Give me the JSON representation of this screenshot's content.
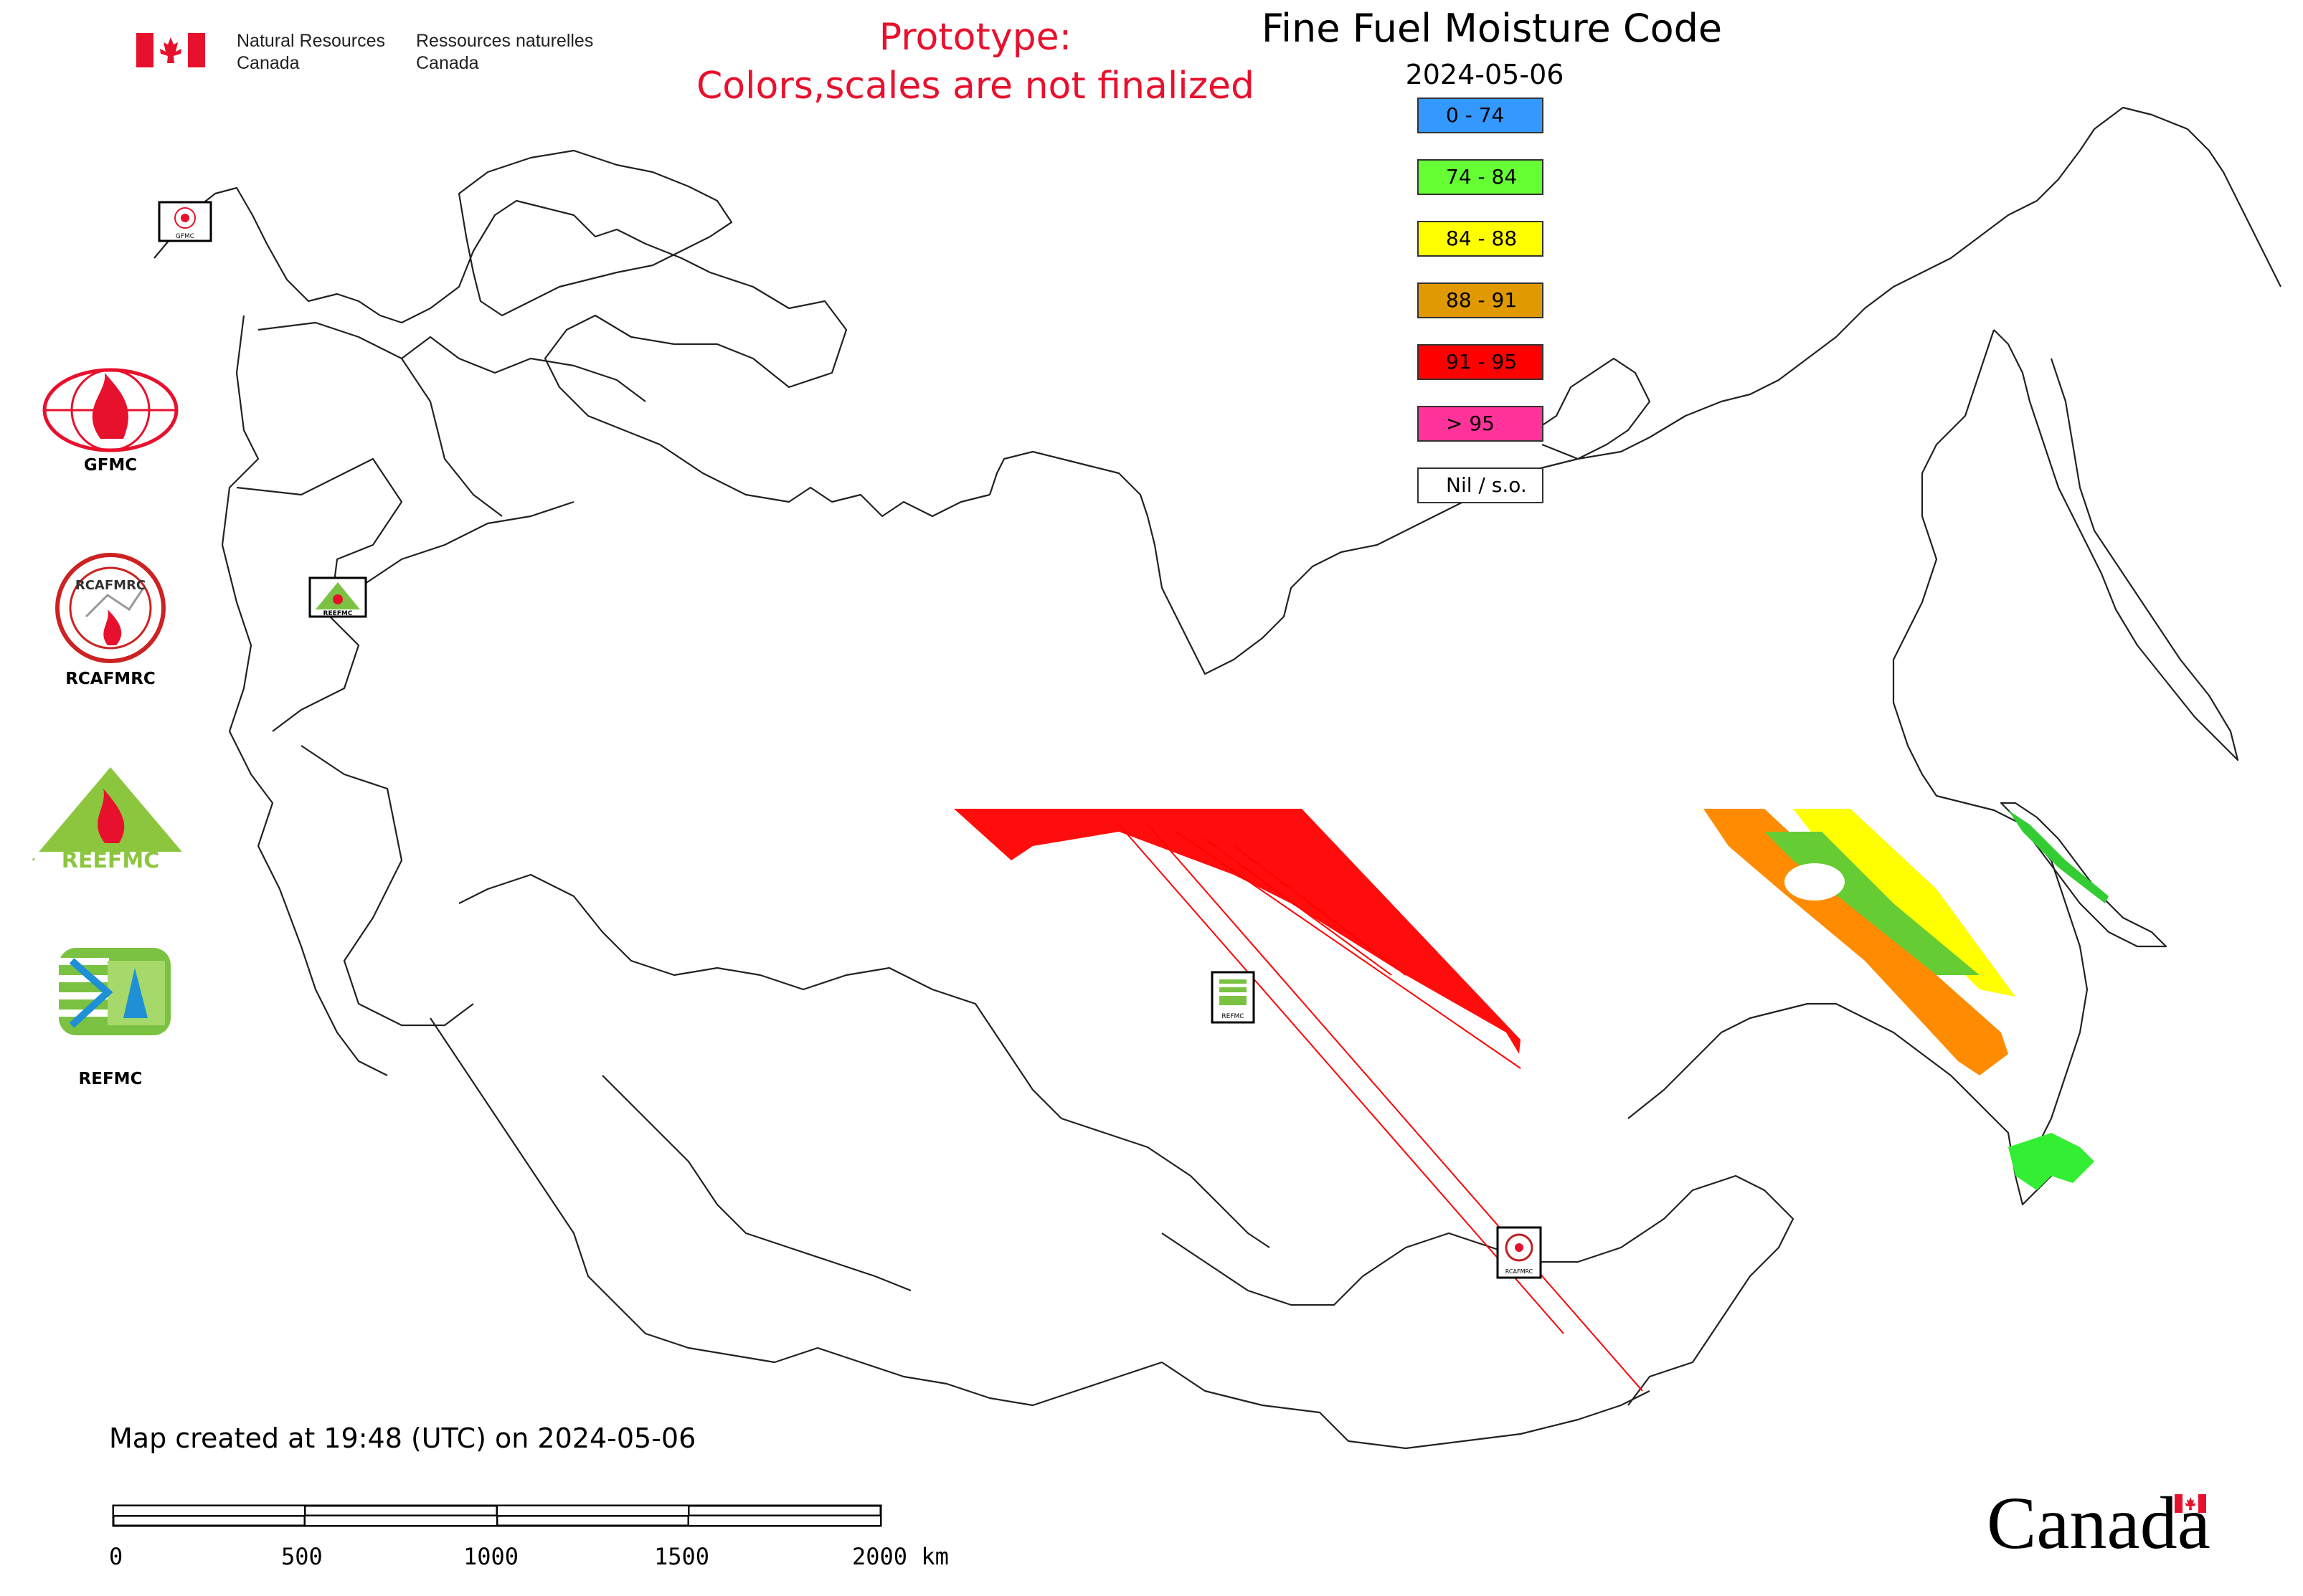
{
  "header": {
    "department_en_line1": "Natural Resources",
    "department_en_line2": "Canada",
    "department_fr_line1": "Ressources naturelles",
    "department_fr_line2": "Canada",
    "flag_icon": "canada-flag-icon",
    "flag_color": "#e8112d"
  },
  "notice": {
    "line1": "Prototype:",
    "line2": "Colors,scales are not finalized",
    "color": "#e8112d"
  },
  "map": {
    "title": "Fine Fuel Moisture Code",
    "date": "2024-05-06",
    "created_note": "Map created at 19:48 (UTC) on 2024-05-06"
  },
  "legend": {
    "items": [
      {
        "label": "0 - 74",
        "color": "#3399ff"
      },
      {
        "label": "74 - 84",
        "color": "#66ff33"
      },
      {
        "label": "84 - 88",
        "color": "#ffff00"
      },
      {
        "label": "88 - 91",
        "color": "#e09900"
      },
      {
        "label": "91 - 95",
        "color": "#ff0000"
      },
      {
        "label": "> 95",
        "color": "#ff3399"
      },
      {
        "label": "Nil / s.o.",
        "color": "#ffffff"
      }
    ]
  },
  "logos": [
    {
      "name": "GFMC",
      "caption": "GFMC",
      "icon": "gfmc-logo-icon"
    },
    {
      "name": "RCAFMRC",
      "caption": "RCAFMRC",
      "icon": "rcafmrc-logo-icon"
    },
    {
      "name": "REEFMC",
      "caption": "",
      "icon": "reefmc-logo-icon",
      "wordmark": "REEFMC"
    },
    {
      "name": "REFMC",
      "caption": "REFMC",
      "icon": "refmc-logo-icon"
    }
  ],
  "markers": [
    {
      "name": "gfmc-station-marker",
      "label": "GFMC"
    },
    {
      "name": "reefmc-station-marker",
      "label": "REEFMC"
    },
    {
      "name": "refmc-station-marker",
      "label": "REFMC"
    },
    {
      "name": "rcafmrc-station-marker",
      "label": "RCAFMRC"
    }
  ],
  "scale_bar": {
    "ticks": [
      "0",
      "500",
      "1000",
      "1500",
      "2000 km"
    ],
    "unit": "km"
  },
  "wordmark": "Canada"
}
